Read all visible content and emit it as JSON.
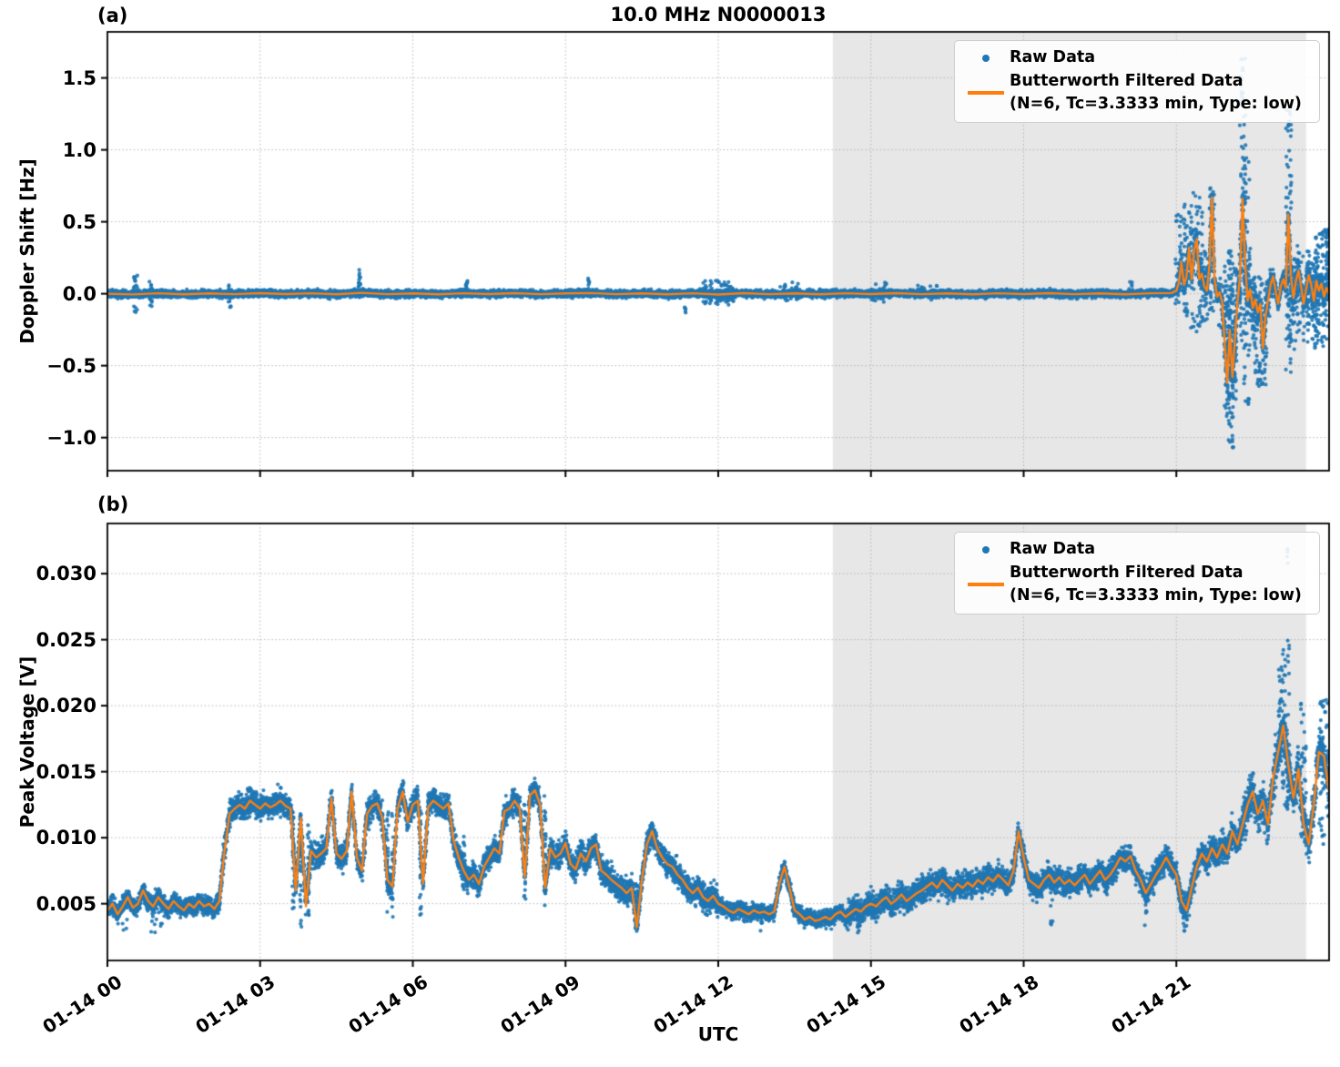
{
  "title": "10.0 MHz N0000013",
  "xlabel": "UTC",
  "colors": {
    "raw": "#1f77b4",
    "filtered": "#ff7f0e",
    "shade": "#e7e7e7",
    "grid": "#b5b5b5",
    "spine": "#000000"
  },
  "legend": {
    "raw_label": "Raw Data",
    "filtered_label": "Butterworth Filtered Data",
    "filtered_sublabel": "(N=6, Tc=3.3333 min, Type: low)"
  },
  "shaded_region": {
    "t0": 14.25,
    "t1": 23.55
  },
  "x_axis": {
    "range_hours": [
      0,
      24
    ],
    "tick_times": [
      0,
      3,
      6,
      9,
      12,
      15,
      18,
      21
    ],
    "tick_labels": [
      "01-14 00",
      "01-14 03",
      "01-14 06",
      "01-14 09",
      "01-14 12",
      "01-14 15",
      "01-14 18",
      "01-14 21"
    ]
  },
  "chart_data": [
    {
      "type": "scatter",
      "panel": "a",
      "tag": "(a)",
      "ylabel": "Doppler Shift [Hz]",
      "ylim": [
        -1.23,
        1.82
      ],
      "yticks": [
        -1.0,
        -0.5,
        0.0,
        0.5,
        1.0,
        1.5
      ],
      "ytick_labels": [
        "−1.0",
        "−0.5",
        "0.0",
        "0.5",
        "1.0",
        "1.5"
      ],
      "series_names": [
        "Raw Data",
        "Butterworth Filtered Data"
      ],
      "filtered": [
        [
          0,
          0.0
        ],
        [
          0.5,
          -0.005
        ],
        [
          1,
          0.003
        ],
        [
          1.5,
          -0.004
        ],
        [
          2,
          0.002
        ],
        [
          2.5,
          -0.003
        ],
        [
          3,
          0.004
        ],
        [
          3.5,
          -0.002
        ],
        [
          4,
          0.003
        ],
        [
          4.5,
          -0.004
        ],
        [
          5,
          0.006
        ],
        [
          5.5,
          -0.003
        ],
        [
          6,
          0.002
        ],
        [
          6.5,
          -0.004
        ],
        [
          7,
          0.003
        ],
        [
          7.5,
          -0.002
        ],
        [
          8,
          0.004
        ],
        [
          8.5,
          -0.003
        ],
        [
          9,
          0.002
        ],
        [
          9.5,
          0.005
        ],
        [
          10,
          -0.003
        ],
        [
          10.5,
          0.002
        ],
        [
          11,
          -0.004
        ],
        [
          11.5,
          0.003
        ],
        [
          12,
          -0.006
        ],
        [
          12.5,
          0.004
        ],
        [
          13,
          -0.003
        ],
        [
          13.5,
          0.002
        ],
        [
          14,
          -0.004
        ],
        [
          14.5,
          0.003
        ],
        [
          15,
          -0.002
        ],
        [
          15.5,
          0.004
        ],
        [
          16,
          -0.003
        ],
        [
          16.5,
          0.002
        ],
        [
          17,
          -0.004
        ],
        [
          17.5,
          0.003
        ],
        [
          18,
          -0.002
        ],
        [
          18.5,
          0.004
        ],
        [
          19,
          -0.003
        ],
        [
          19.5,
          0.002
        ],
        [
          20,
          -0.004
        ],
        [
          20.5,
          0.003
        ],
        [
          20.9,
          0.005
        ],
        [
          21.0,
          0.02
        ],
        [
          21.05,
          0.08
        ],
        [
          21.1,
          0.22
        ],
        [
          21.15,
          0.06
        ],
        [
          21.2,
          0.12
        ],
        [
          21.25,
          0.32
        ],
        [
          21.3,
          0.1
        ],
        [
          21.35,
          0.3
        ],
        [
          21.4,
          0.38
        ],
        [
          21.45,
          0.1
        ],
        [
          21.5,
          0.14
        ],
        [
          21.55,
          0.05
        ],
        [
          21.6,
          0.02
        ],
        [
          21.65,
          0.2
        ],
        [
          21.7,
          0.67
        ],
        [
          21.75,
          0.1
        ],
        [
          21.8,
          -0.02
        ],
        [
          21.85,
          0.01
        ],
        [
          21.9,
          -0.06
        ],
        [
          21.95,
          -0.35
        ],
        [
          22.0,
          -0.62
        ],
        [
          22.05,
          -0.25
        ],
        [
          22.1,
          -0.58
        ],
        [
          22.15,
          -0.32
        ],
        [
          22.2,
          -0.06
        ],
        [
          22.25,
          0.12
        ],
        [
          22.3,
          0.66
        ],
        [
          22.35,
          0.22
        ],
        [
          22.4,
          -0.05
        ],
        [
          22.45,
          0.03
        ],
        [
          22.5,
          -0.1
        ],
        [
          22.55,
          -0.04
        ],
        [
          22.6,
          -0.13
        ],
        [
          22.65,
          -0.07
        ],
        [
          22.7,
          -0.38
        ],
        [
          22.75,
          -0.16
        ],
        [
          22.8,
          -0.05
        ],
        [
          22.85,
          0.06
        ],
        [
          22.9,
          0.12
        ],
        [
          22.95,
          0.02
        ],
        [
          23.0,
          -0.07
        ],
        [
          23.05,
          0.05
        ],
        [
          23.1,
          0.1
        ],
        [
          23.15,
          0.04
        ],
        [
          23.2,
          0.55
        ],
        [
          23.25,
          0.12
        ],
        [
          23.3,
          -0.03
        ],
        [
          23.35,
          0.09
        ],
        [
          23.4,
          0.16
        ],
        [
          23.45,
          0.05
        ],
        [
          23.5,
          -0.07
        ],
        [
          23.55,
          0.03
        ],
        [
          23.6,
          0.13
        ],
        [
          23.65,
          0.06
        ],
        [
          23.7,
          -0.05
        ],
        [
          23.75,
          0.09
        ],
        [
          23.8,
          0.02
        ],
        [
          23.85,
          0.07
        ],
        [
          23.9,
          -0.02
        ],
        [
          23.95,
          0.04
        ],
        [
          24,
          0.0
        ]
      ],
      "noise_bands": [
        [
          0,
          11.8,
          0.04
        ],
        [
          11.8,
          12.3,
          0.055
        ],
        [
          12.3,
          21.0,
          0.04
        ],
        [
          21.0,
          21.6,
          0.14
        ],
        [
          21.6,
          21.9,
          0.06
        ],
        [
          21.9,
          22.25,
          0.3
        ],
        [
          22.25,
          22.55,
          0.36
        ],
        [
          22.55,
          22.9,
          0.2
        ],
        [
          22.9,
          23.15,
          0.09
        ],
        [
          23.15,
          23.4,
          0.24
        ],
        [
          23.4,
          24,
          0.16
        ]
      ],
      "outlier_columns": [
        [
          0.55,
          -0.13,
          0.13,
          25,
          0.04
        ],
        [
          0.85,
          -0.09,
          0.09,
          15,
          0.03
        ],
        [
          2.4,
          -0.1,
          0.07,
          15,
          0.03
        ],
        [
          4.95,
          0.04,
          0.17,
          14,
          0.02
        ],
        [
          7.05,
          -0.04,
          0.09,
          12,
          0.03
        ],
        [
          9.45,
          -0.02,
          0.11,
          14,
          0.02
        ],
        [
          11.35,
          -0.14,
          -0.09,
          5,
          0.01
        ],
        [
          12.0,
          -0.08,
          0.1,
          60,
          0.3
        ],
        [
          13.4,
          -0.05,
          0.08,
          30,
          0.2
        ],
        [
          15.15,
          -0.06,
          0.08,
          25,
          0.15
        ],
        [
          16.1,
          -0.05,
          0.06,
          20,
          0.2
        ],
        [
          20.1,
          0.0,
          0.1,
          10,
          0.03
        ],
        [
          21.1,
          -0.1,
          0.55,
          40,
          0.12
        ],
        [
          21.25,
          -0.2,
          0.62,
          40,
          0.1
        ],
        [
          21.4,
          -0.28,
          0.78,
          50,
          0.12
        ],
        [
          21.55,
          -0.2,
          0.3,
          25,
          0.08
        ],
        [
          21.7,
          -0.12,
          0.75,
          45,
          0.05
        ],
        [
          21.9,
          -0.3,
          0.15,
          25,
          0.08
        ],
        [
          22.0,
          -0.92,
          0.25,
          60,
          0.07
        ],
        [
          22.07,
          -1.07,
          0.3,
          70,
          0.05
        ],
        [
          22.13,
          -0.8,
          0.2,
          45,
          0.06
        ],
        [
          22.3,
          -0.35,
          1.65,
          80,
          0.06
        ],
        [
          22.38,
          -0.8,
          1.0,
          50,
          0.06
        ],
        [
          22.6,
          -0.72,
          0.15,
          45,
          0.1
        ],
        [
          22.72,
          -0.65,
          0.1,
          35,
          0.06
        ],
        [
          23.2,
          -0.55,
          1.28,
          70,
          0.06
        ],
        [
          23.3,
          -0.4,
          0.35,
          50,
          0.12
        ],
        [
          23.55,
          -0.35,
          0.3,
          60,
          0.2
        ],
        [
          23.7,
          -0.3,
          0.25,
          60,
          0.15
        ],
        [
          23.85,
          -0.38,
          0.45,
          90,
          0.13
        ],
        [
          23.97,
          0.1,
          0.45,
          25,
          0.03
        ]
      ]
    },
    {
      "type": "scatter",
      "panel": "b",
      "tag": "(b)",
      "ylabel": "Peak Voltage [V]",
      "ylim": [
        0.0007,
        0.0338
      ],
      "yticks": [
        0.005,
        0.01,
        0.015,
        0.02,
        0.025,
        0.03
      ],
      "ytick_labels": [
        "0.005",
        "0.010",
        "0.015",
        "0.020",
        "0.025",
        "0.030"
      ],
      "series_names": [
        "Raw Data",
        "Butterworth Filtered Data"
      ],
      "filtered_t0": 0,
      "filtered_dt": 0.1,
      "filtered_v": [
        0.0045,
        0.005,
        0.0042,
        0.0048,
        0.0055,
        0.0047,
        0.005,
        0.006,
        0.0052,
        0.0048,
        0.0055,
        0.005,
        0.0046,
        0.0052,
        0.0048,
        0.0045,
        0.005,
        0.0047,
        0.0052,
        0.0048,
        0.005,
        0.0046,
        0.0052,
        0.009,
        0.0118,
        0.0122,
        0.0125,
        0.0122,
        0.0128,
        0.0125,
        0.0122,
        0.0126,
        0.0123,
        0.0125,
        0.0128,
        0.0124,
        0.0122,
        0.006,
        0.0115,
        0.0048,
        0.009,
        0.0085,
        0.0088,
        0.0092,
        0.013,
        0.0088,
        0.0084,
        0.009,
        0.0135,
        0.0085,
        0.0075,
        0.0118,
        0.0124,
        0.0126,
        0.0115,
        0.0068,
        0.0063,
        0.0122,
        0.0135,
        0.0112,
        0.0125,
        0.0128,
        0.0065,
        0.0123,
        0.0128,
        0.0125,
        0.0122,
        0.0126,
        0.0098,
        0.0085,
        0.0075,
        0.0068,
        0.0072,
        0.0065,
        0.0078,
        0.0085,
        0.0092,
        0.0088,
        0.012,
        0.0122,
        0.0128,
        0.0122,
        0.007,
        0.0132,
        0.0136,
        0.0125,
        0.0062,
        0.0092,
        0.0085,
        0.0088,
        0.0096,
        0.008,
        0.0076,
        0.0088,
        0.0082,
        0.0092,
        0.0095,
        0.0075,
        0.0072,
        0.0068,
        0.0065,
        0.0062,
        0.0058,
        0.0062,
        0.0032,
        0.0068,
        0.0095,
        0.0105,
        0.0092,
        0.0085,
        0.008,
        0.0078,
        0.0072,
        0.0068,
        0.0062,
        0.0058,
        0.0062,
        0.0055,
        0.0052,
        0.0056,
        0.005,
        0.0048,
        0.0045,
        0.0043,
        0.0046,
        0.0044,
        0.0042,
        0.0045,
        0.0043,
        0.0044,
        0.0042,
        0.0044,
        0.0065,
        0.0078,
        0.0062,
        0.0045,
        0.0042,
        0.0038,
        0.004,
        0.0037,
        0.0038,
        0.004,
        0.0038,
        0.0042,
        0.0044,
        0.004,
        0.0043,
        0.0046,
        0.0044,
        0.0048,
        0.005,
        0.0048,
        0.0052,
        0.0055,
        0.005,
        0.0053,
        0.0057,
        0.0052,
        0.0055,
        0.0058,
        0.006,
        0.0063,
        0.0066,
        0.0062,
        0.0068,
        0.0064,
        0.006,
        0.0065,
        0.0062,
        0.0066,
        0.0063,
        0.0068,
        0.0065,
        0.007,
        0.0067,
        0.0072,
        0.0068,
        0.0064,
        0.0075,
        0.0105,
        0.0085,
        0.0068,
        0.0065,
        0.0062,
        0.0068,
        0.0072,
        0.0066,
        0.007,
        0.0065,
        0.0068,
        0.0064,
        0.0068,
        0.0072,
        0.0065,
        0.007,
        0.0075,
        0.0068,
        0.0072,
        0.0078,
        0.0085,
        0.0082,
        0.0086,
        0.0075,
        0.0068,
        0.0058,
        0.0065,
        0.0072,
        0.0078,
        0.0085,
        0.0078,
        0.0072,
        0.0052,
        0.0045,
        0.0062,
        0.0078,
        0.0088,
        0.0082,
        0.0092,
        0.0085,
        0.0095,
        0.0088,
        0.0105,
        0.0095,
        0.011,
        0.0125,
        0.0135,
        0.0118,
        0.0128,
        0.011,
        0.0145,
        0.0165,
        0.0185,
        0.0155,
        0.013,
        0.0152,
        0.011,
        0.0095,
        0.0125,
        0.0165,
        0.0162,
        0.0135
      ],
      "noise_bands": [
        [
          0,
          2.2,
          0.0011
        ],
        [
          2.2,
          12,
          0.0016
        ],
        [
          12,
          14.5,
          0.001
        ],
        [
          14.5,
          21,
          0.0016
        ],
        [
          21,
          22.3,
          0.0018
        ],
        [
          22.3,
          24,
          0.0026
        ]
      ],
      "outlier_columns": [
        [
          0.3,
          0.003,
          0.005,
          10,
          0.1
        ],
        [
          1.0,
          0.0028,
          0.005,
          12,
          0.15
        ],
        [
          3.65,
          0.0045,
          0.012,
          25,
          0.02
        ],
        [
          3.8,
          0.003,
          0.012,
          30,
          0.02
        ],
        [
          3.95,
          0.004,
          0.011,
          20,
          0.02
        ],
        [
          5.5,
          0.004,
          0.012,
          25,
          0.02
        ],
        [
          5.6,
          0.0035,
          0.012,
          15,
          0.02
        ],
        [
          6.15,
          0.004,
          0.0125,
          20,
          0.02
        ],
        [
          7.0,
          0.006,
          0.0105,
          15,
          0.02
        ],
        [
          8.2,
          0.005,
          0.0135,
          25,
          0.02
        ],
        [
          8.6,
          0.0045,
          0.0135,
          25,
          0.02
        ],
        [
          10.4,
          0.003,
          0.0065,
          30,
          0.03
        ],
        [
          12.85,
          0.0028,
          0.0048,
          15,
          0.02
        ],
        [
          14.75,
          0.0028,
          0.005,
          12,
          0.02
        ],
        [
          18.55,
          0.003,
          0.007,
          10,
          0.02
        ],
        [
          20.4,
          0.0032,
          0.0065,
          12,
          0.02
        ],
        [
          21.15,
          0.0028,
          0.006,
          15,
          0.02
        ],
        [
          23.05,
          0.018,
          0.0235,
          20,
          0.04
        ],
        [
          23.15,
          0.012,
          0.0255,
          60,
          0.08
        ],
        [
          23.18,
          0.0305,
          0.032,
          4,
          0.01
        ],
        [
          23.5,
          0.01,
          0.021,
          30,
          0.06
        ],
        [
          23.9,
          0.009,
          0.0205,
          40,
          0.1
        ]
      ]
    }
  ]
}
